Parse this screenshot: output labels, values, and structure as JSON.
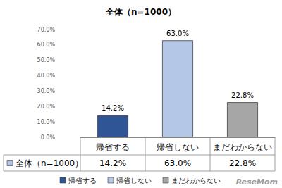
{
  "chart_data": {
    "type": "bar",
    "title": "全体（n=1000）",
    "categories": [
      "帰省する",
      "帰省しない",
      "まだわからない"
    ],
    "series": [
      {
        "name": "全体（n=1000）",
        "values": [
          14.2,
          63.0,
          22.8
        ],
        "value_labels": [
          "14.2%",
          "63.0%",
          "22.8%"
        ],
        "colors": [
          "#2f5597",
          "#b4c7e7",
          "#a6a6a6"
        ]
      }
    ],
    "ylim": [
      0,
      70
    ],
    "yticks": [
      {
        "value": 0,
        "label": "0.0%"
      },
      {
        "value": 10,
        "label": "10.0%"
      },
      {
        "value": 20,
        "label": "20.0%"
      },
      {
        "value": 30,
        "label": "30.0%"
      },
      {
        "value": 40,
        "label": "40.0%"
      },
      {
        "value": 50,
        "label": "50.0%"
      },
      {
        "value": 60,
        "label": "60.0%"
      },
      {
        "value": 70,
        "label": "70.0%"
      }
    ],
    "grid": false,
    "data_labels": true,
    "legend": "bottom",
    "annotations": [
      "ReseMom"
    ]
  }
}
